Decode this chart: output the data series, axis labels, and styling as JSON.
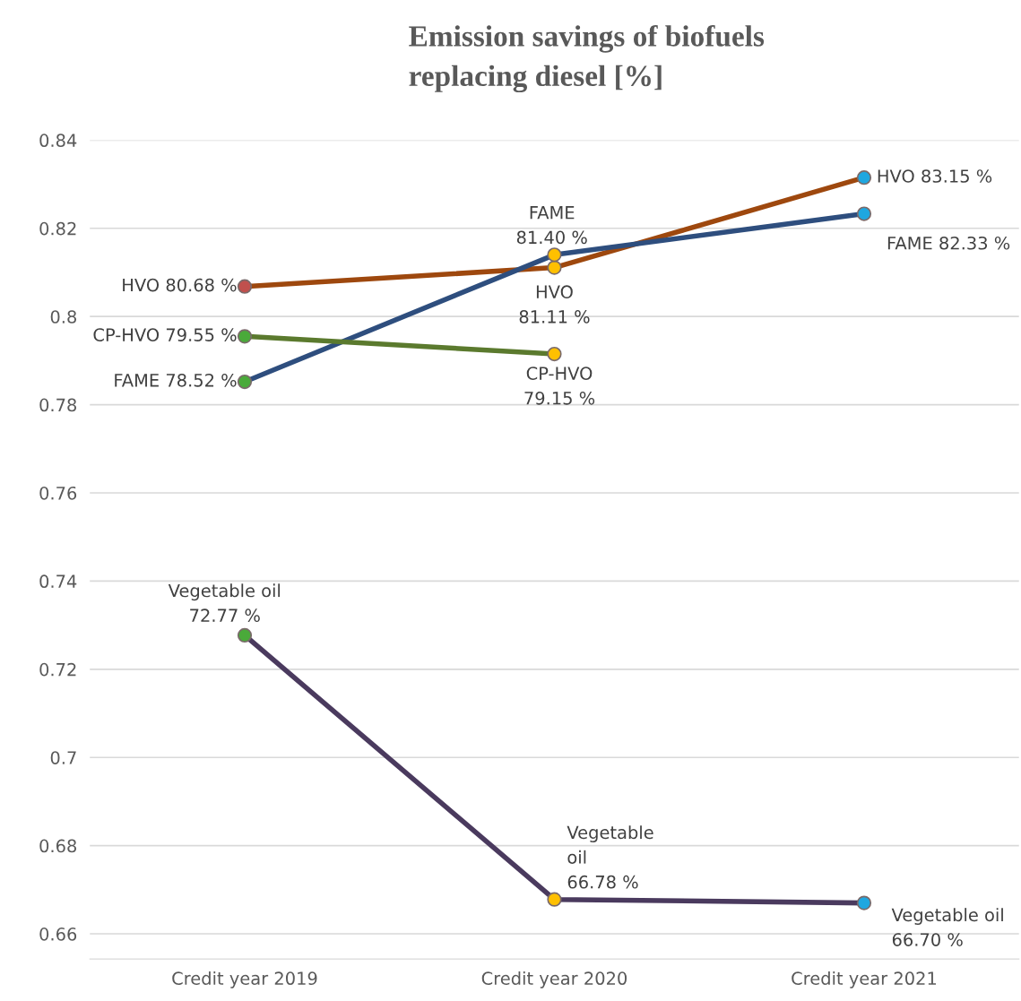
{
  "chart_data": {
    "type": "line",
    "title": "Emission savings of biofuels\nreplacing diesel [%]",
    "categories": [
      "Credit year 2019",
      "Credit year 2020",
      "Credit year 2021"
    ],
    "series": [
      {
        "color": "#9e480e",
        "colors": [
          "#c0504d",
          "#ffc000",
          "#1fa7e0"
        ],
        "values": [
          0.8068,
          0.8111,
          0.8315
        ],
        "value_labels": [
          "HVO 80.68 %",
          "HVO\n81.11 %",
          "HVO 83.15 %"
        ]
      },
      {
        "color": "#2e4e7e",
        "colors": [
          "#4aaa3a",
          "#ffc000",
          "#1fa7e0"
        ],
        "values": [
          0.7852,
          0.814,
          0.8233
        ],
        "value_labels": [
          "FAME 78.52 %",
          "FAME\n81.40 %",
          "FAME 82.33 %"
        ]
      },
      {
        "color": "#5b7a2e",
        "colors": [
          "#4aaa3a",
          "#ffc000",
          null
        ],
        "values": [
          0.7955,
          0.7915,
          null
        ],
        "value_labels": [
          "CP-HVO 79.55 %",
          "CP-HVO\n79.15 %",
          null
        ]
      },
      {
        "color": "#4a3a5e",
        "colors": [
          "#4aaa3a",
          "#ffc000",
          "#1fa7e0"
        ],
        "values": [
          0.7277,
          0.6678,
          0.667
        ],
        "value_labels": [
          "Vegetable oil\n72.77 %",
          "Vegetable\noil\n66.78 %",
          "Vegetable oil\n66.70 %"
        ]
      }
    ],
    "ylim": [
      0.6543,
      0.84
    ],
    "yticks": [
      0.66,
      0.68,
      0.7,
      0.72,
      0.74,
      0.76,
      0.78,
      0.8,
      0.82,
      0.84
    ],
    "grid": "y",
    "marker": "circle",
    "line_style": "solid",
    "legend": false
  }
}
